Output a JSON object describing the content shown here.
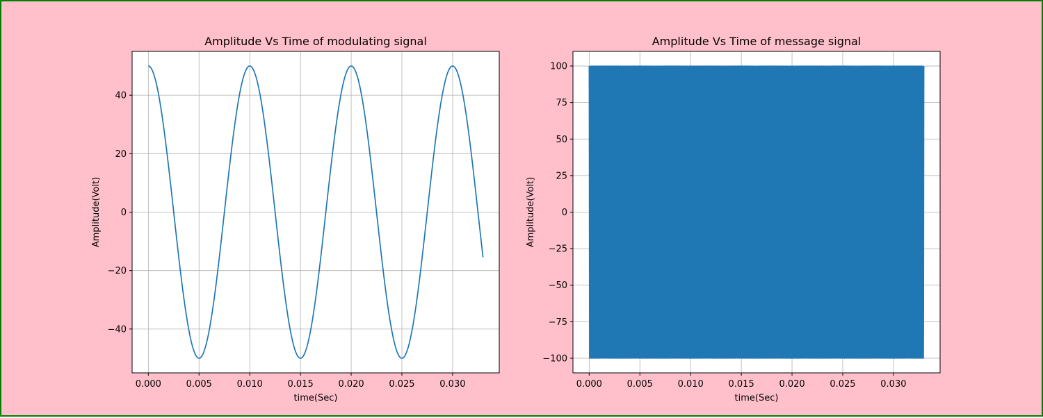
{
  "figure": {
    "background": "#ffc0cb",
    "border_color": "#008000"
  },
  "chart_data": [
    {
      "type": "line",
      "title": "Amplitude Vs Time of modulating signal",
      "xlabel": "time(Sec)",
      "ylabel": "Amplitude(Volt)",
      "xlim": [
        -0.0016,
        0.0346
      ],
      "ylim": [
        -55,
        55
      ],
      "xticks": [
        0.0,
        0.005,
        0.01,
        0.015,
        0.02,
        0.025,
        0.03
      ],
      "xtick_labels": [
        "0.000",
        "0.005",
        "0.010",
        "0.015",
        "0.020",
        "0.025",
        "0.030"
      ],
      "yticks": [
        -40,
        -20,
        0,
        20,
        40
      ],
      "ytick_labels": [
        "−40",
        "−20",
        "0",
        "20",
        "40"
      ],
      "grid": true,
      "line_color": "#1f77b4",
      "series": [
        {
          "signal": "cosine",
          "amplitude": 50,
          "frequency_hz": 100,
          "t_start": 0.0,
          "t_end": 0.033
        }
      ]
    },
    {
      "type": "line",
      "title": "Amplitude Vs Time of message signal",
      "xlabel": "time(Sec)",
      "ylabel": "Amplitude(Volt)",
      "xlim": [
        -0.0016,
        0.0346
      ],
      "ylim": [
        -110,
        110
      ],
      "xticks": [
        0.0,
        0.005,
        0.01,
        0.015,
        0.02,
        0.025,
        0.03
      ],
      "xtick_labels": [
        "0.000",
        "0.005",
        "0.010",
        "0.015",
        "0.020",
        "0.025",
        "0.030"
      ],
      "yticks": [
        -100,
        -75,
        -50,
        -25,
        0,
        25,
        50,
        75,
        100
      ],
      "ytick_labels": [
        "−100",
        "−75",
        "−50",
        "−25",
        "0",
        "25",
        "50",
        "75",
        "100"
      ],
      "grid": true,
      "line_color": "#1f77b4",
      "series": [
        {
          "signal": "cosine",
          "amplitude": 100,
          "frequency_hz": 10000,
          "t_start": 0.0,
          "t_end": 0.033
        }
      ]
    }
  ]
}
